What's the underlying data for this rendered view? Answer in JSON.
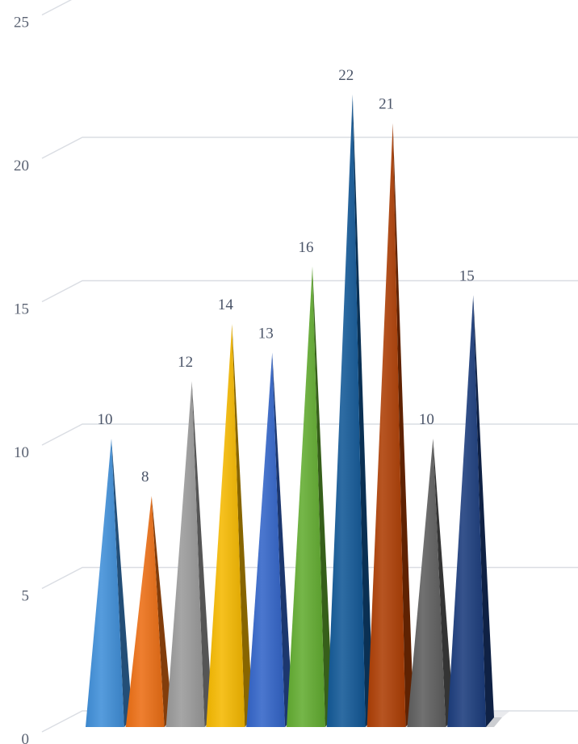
{
  "chart_data": {
    "type": "bar",
    "title": "",
    "xlabel": "",
    "ylabel": "",
    "ylim": [
      0,
      25
    ],
    "yticks": [
      0,
      5,
      10,
      15,
      20,
      25
    ],
    "grid": true,
    "legend": "none",
    "bar_shape": "cone",
    "values": [
      10,
      8,
      12,
      14,
      13,
      16,
      22,
      21,
      10,
      15
    ],
    "labels": [
      "10",
      "8",
      "12",
      "14",
      "13",
      "16",
      "22",
      "21",
      "10",
      "15"
    ],
    "colors": [
      "#3f8ed8",
      "#ec6e14",
      "#9a9a9a",
      "#f5b800",
      "#3264c8",
      "#62ac30",
      "#125896",
      "#ad3e04",
      "#5e5e5e",
      "#1b3c7c"
    ]
  }
}
